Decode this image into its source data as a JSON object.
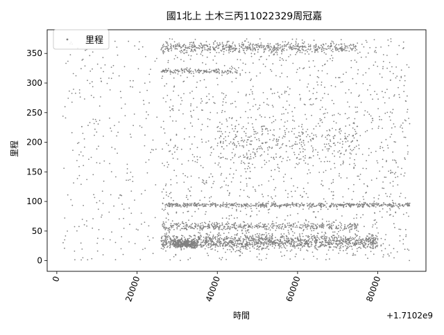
{
  "chart_data": {
    "type": "scatter",
    "title": "國1北上 土木三丙11022329周冠嘉",
    "xlabel": "時間",
    "ylabel": "里程",
    "x_offset_label": "+1.7102e9",
    "xlim": [
      -2400,
      92000
    ],
    "ylim": [
      -18,
      390
    ],
    "x_ticks": [
      0,
      20000,
      40000,
      60000,
      80000
    ],
    "x_tick_labels": [
      "0",
      "20000",
      "40000",
      "60000",
      "80000"
    ],
    "y_ticks": [
      0,
      50,
      100,
      150,
      200,
      250,
      300,
      350
    ],
    "y_tick_labels": [
      "0",
      "50",
      "100",
      "150",
      "200",
      "250",
      "300",
      "350"
    ],
    "x_tick_rotation": 70,
    "grid": false,
    "legend_position": "upper left",
    "series": [
      {
        "name": "里程",
        "color": "#808080",
        "marker": "dot",
        "clusters": [
          {
            "x_range": [
              1500,
              25000
            ],
            "y_range": [
              0,
              375
            ],
            "count": 260
          },
          {
            "x_range": [
              26000,
              88000
            ],
            "y_range": [
              0,
              375
            ],
            "count": 1400
          },
          {
            "x_range": [
              26000,
              80000
            ],
            "y_center": 32,
            "y_spread": 18,
            "count": 1300
          },
          {
            "x_range": [
              27000,
              88000
            ],
            "y_center": 94,
            "y_spread": 5,
            "count": 550
          },
          {
            "x_range": [
              26000,
              75000
            ],
            "y_center": 58,
            "y_spread": 10,
            "count": 450
          },
          {
            "x_range": [
              26000,
              75000
            ],
            "y_center": 360,
            "y_spread": 12,
            "count": 550
          },
          {
            "x_range": [
              26000,
              45000
            ],
            "y_center": 320,
            "y_spread": 6,
            "count": 140
          },
          {
            "x_range": [
              40000,
              75000
            ],
            "y_center": 200,
            "y_spread": 60,
            "count": 300
          },
          {
            "x_range": [
              29000,
              35000
            ],
            "y_center": 28,
            "y_spread": 10,
            "count": 250
          }
        ]
      }
    ]
  }
}
